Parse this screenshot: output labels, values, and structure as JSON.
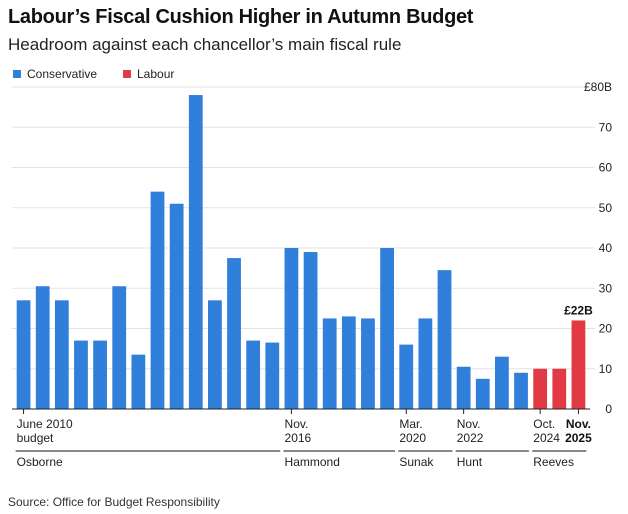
{
  "chart_data": {
    "type": "bar",
    "title": "Labour’s Fiscal Cushion Higher in Autumn Budget",
    "subtitle": "Headroom against each chancellor’s main fiscal rule",
    "source": "Source: Office for Budget Responsibility",
    "ylim": [
      0,
      80
    ],
    "yticks": [
      0,
      10,
      20,
      30,
      40,
      50,
      60,
      70,
      80
    ],
    "ytick_labels": [
      "0",
      "10",
      "20",
      "30",
      "40",
      "50",
      "60",
      "70",
      "£80B"
    ],
    "series": [
      {
        "name": "Conservative",
        "color": "#2f7fdb"
      },
      {
        "name": "Labour",
        "color": "#e23a45"
      }
    ],
    "values": [
      27,
      30.5,
      27,
      17,
      17,
      30.5,
      13.5,
      54,
      51,
      78,
      27,
      37.5,
      17,
      16.5,
      40,
      39,
      22.5,
      23,
      22.5,
      40,
      16,
      22.5,
      34.5,
      10.5,
      7.5,
      13,
      9,
      10,
      10,
      22
    ],
    "party": [
      "Conservative",
      "Conservative",
      "Conservative",
      "Conservative",
      "Conservative",
      "Conservative",
      "Conservative",
      "Conservative",
      "Conservative",
      "Conservative",
      "Conservative",
      "Conservative",
      "Conservative",
      "Conservative",
      "Conservative",
      "Conservative",
      "Conservative",
      "Conservative",
      "Conservative",
      "Conservative",
      "Conservative",
      "Conservative",
      "Conservative",
      "Conservative",
      "Conservative",
      "Conservative",
      "Conservative",
      "Labour",
      "Labour",
      "Labour"
    ],
    "x_labels": [
      {
        "index": 0,
        "line1": "June 2010",
        "line2": "budget",
        "bold": false,
        "anchor": "start"
      },
      {
        "index": 14,
        "line1": "Nov.",
        "line2": "2016",
        "bold": false,
        "anchor": "start"
      },
      {
        "index": 20,
        "line1": "Mar.",
        "line2": "2020",
        "bold": false,
        "anchor": "start"
      },
      {
        "index": 23,
        "line1": "Nov.",
        "line2": "2022",
        "bold": false,
        "anchor": "start"
      },
      {
        "index": 27,
        "line1": "Oct.",
        "line2": "2024",
        "bold": false,
        "anchor": "start"
      },
      {
        "index": 29,
        "line1": "Nov.",
        "line2": "2025",
        "bold": true,
        "anchor": "middle"
      }
    ],
    "chancellors": [
      {
        "name": "Osborne",
        "start": 0,
        "end": 13
      },
      {
        "name": "Hammond",
        "start": 14,
        "end": 19
      },
      {
        "name": "Sunak",
        "start": 20,
        "end": 22
      },
      {
        "name": "Hunt",
        "start": 23,
        "end": 26
      },
      {
        "name": "Reeves",
        "start": 27,
        "end": 29
      }
    ],
    "annotations": [
      {
        "index": 29,
        "text": "£22B"
      }
    ]
  }
}
